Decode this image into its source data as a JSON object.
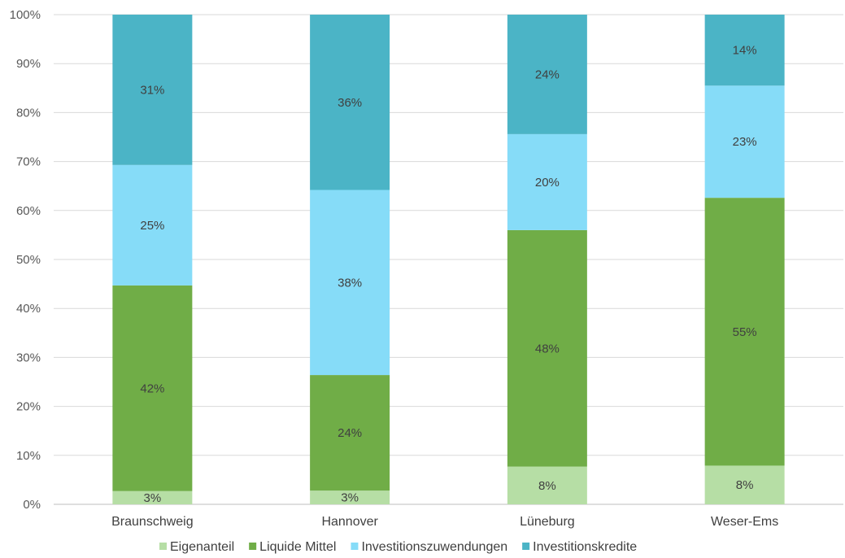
{
  "chart_data": {
    "type": "bar",
    "stacked": true,
    "percent_stacked": true,
    "categories": [
      "Braunschweig",
      "Hannover",
      "Lüneburg",
      "Weser-Ems"
    ],
    "series": [
      {
        "name": "Eigenanteil",
        "color": "#b6dea5",
        "values": [
          2.7,
          2.8,
          7.7,
          7.9
        ],
        "labels": [
          "3%",
          "3%",
          "8%",
          "8%"
        ]
      },
      {
        "name": "Liquide Mittel",
        "color": "#70ad47",
        "values": [
          42.0,
          23.6,
          48.3,
          54.7
        ],
        "labels": [
          "42%",
          "24%",
          "48%",
          "55%"
        ]
      },
      {
        "name": "Investitionszuwendungen",
        "color": "#86dcf8",
        "values": [
          24.6,
          37.8,
          19.6,
          22.9
        ],
        "labels": [
          "25%",
          "38%",
          "20%",
          "23%"
        ]
      },
      {
        "name": "Investitionskredite",
        "color": "#4bb4c6",
        "values": [
          30.7,
          35.8,
          24.4,
          14.5
        ],
        "labels": [
          "31%",
          "36%",
          "24%",
          "14%"
        ]
      }
    ],
    "yticks": [
      "0%",
      "10%",
      "20%",
      "30%",
      "40%",
      "50%",
      "60%",
      "70%",
      "80%",
      "90%",
      "100%"
    ],
    "ylim": [
      0,
      100
    ],
    "grid": true,
    "legend_position": "bottom"
  }
}
